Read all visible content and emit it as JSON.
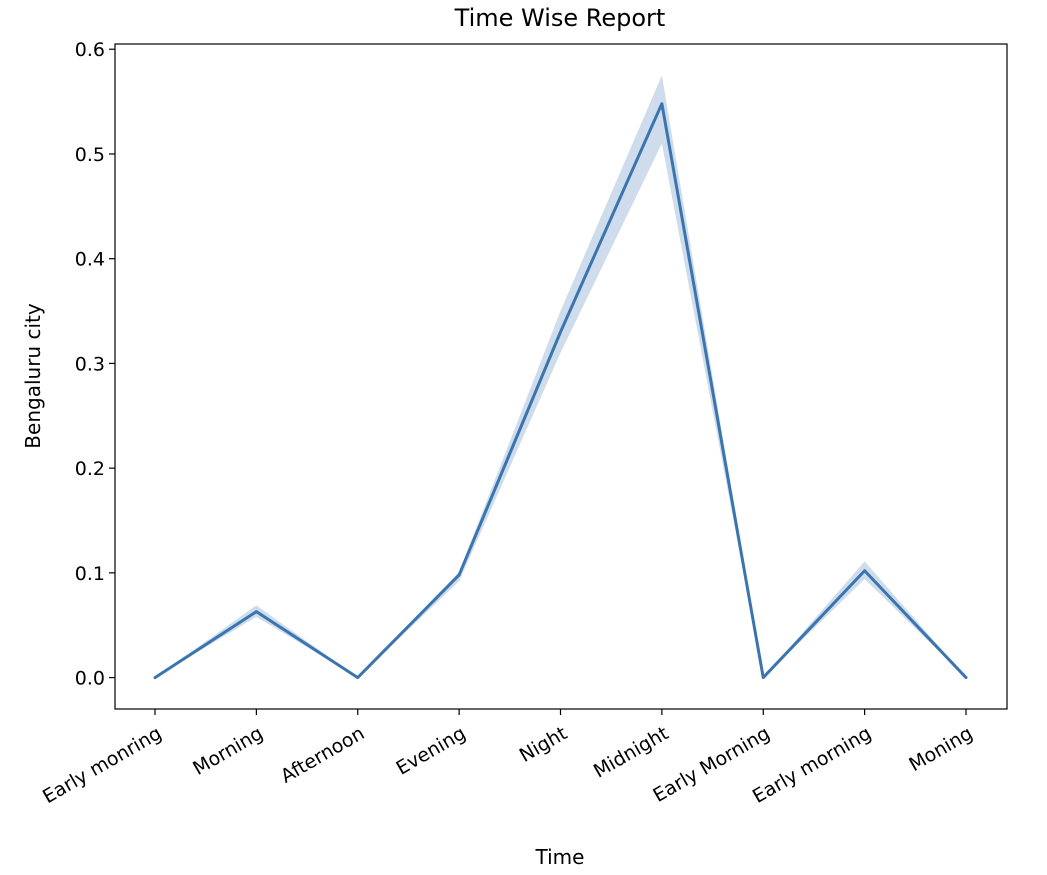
{
  "chart_data": {
    "type": "line",
    "title": "Time Wise Report",
    "xlabel": "Time",
    "ylabel": "Bengaluru city",
    "categories": [
      "Early monring",
      "Morning",
      "Afternoon",
      "Evening",
      "Night",
      "Midnight",
      "Early Morning",
      "Early morning",
      "Moning"
    ],
    "series": [
      {
        "values": [
          0.0,
          0.063,
          0.0,
          0.098,
          0.33,
          0.548,
          0.0,
          0.102,
          0.0
        ],
        "ci_lower": [
          0.0,
          0.058,
          0.0,
          0.092,
          0.31,
          0.51,
          0.0,
          0.094,
          0.0
        ],
        "ci_upper": [
          0.0,
          0.069,
          0.0,
          0.101,
          0.35,
          0.575,
          0.0,
          0.111,
          0.0
        ]
      }
    ],
    "ylim": [
      -0.03,
      0.605
    ],
    "yticks": [
      0.0,
      0.1,
      0.2,
      0.3,
      0.4,
      0.5,
      0.6
    ],
    "ytick_labels": [
      "0.0",
      "0.1",
      "0.2",
      "0.3",
      "0.4",
      "0.5",
      "0.6"
    ],
    "grid": false,
    "colors": {
      "line": "#3b75af",
      "band": "#3b75af"
    }
  }
}
